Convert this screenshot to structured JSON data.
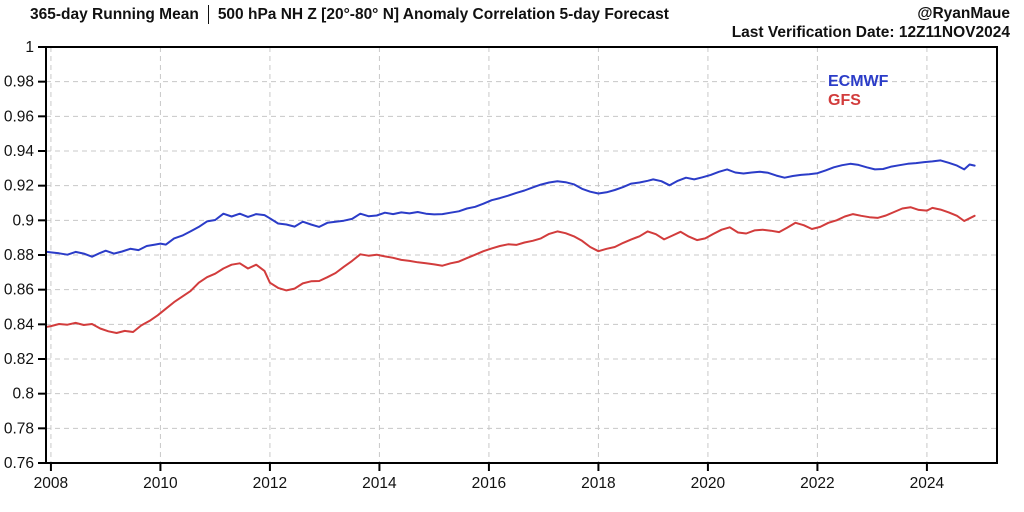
{
  "header": {
    "title_left": "365-day Running Mean",
    "title_right": "500 hPa NH Z [20°-80° N] Anomaly Correlation 5-day Forecast",
    "attribution": "@RyanMaue",
    "verification": "Last Verification Date: 12Z11NOV2024"
  },
  "legend": {
    "items": [
      {
        "label": "ECMWF",
        "color": "#2b3cc8"
      },
      {
        "label": "GFS",
        "color": "#d23c3c"
      }
    ]
  },
  "colors": {
    "axis": "#000000",
    "grid": "#c8c8c8",
    "text": "#111111",
    "background": "#ffffff",
    "ecmwf": "#2b3cc8",
    "gfs": "#d23c3c"
  },
  "chart_data": {
    "type": "line",
    "title": "365-day Running Mean | 500 hPa NH Z [20°-80° N] Anomaly Correlation 5-day Forecast",
    "xlabel": "",
    "ylabel": "",
    "xlim": [
      2007.91,
      2025.28
    ],
    "ylim": [
      0.76,
      1.0
    ],
    "xticks": [
      2008,
      2010,
      2012,
      2014,
      2016,
      2018,
      2020,
      2022,
      2024
    ],
    "xtick_labels": [
      "2008",
      "2010",
      "2012",
      "2014",
      "2016",
      "2018",
      "2020",
      "2022",
      "2024"
    ],
    "yticks": [
      0.76,
      0.78,
      0.8,
      0.82,
      0.84,
      0.86,
      0.88,
      0.9,
      0.92,
      0.94,
      0.96,
      0.98,
      1.0
    ],
    "ytick_labels": [
      "0.76",
      "0.78",
      "0.8",
      "0.82",
      "0.84",
      "0.86",
      "0.88",
      "0.9",
      "0.92",
      "0.94",
      "0.96",
      "0.98",
      "1"
    ],
    "grid": "dashed",
    "legend_position": "upper-right-inside",
    "series": [
      {
        "name": "ECMWF",
        "color": "#2b3cc8",
        "x": [
          2007.93,
          2008.0,
          2008.15,
          2008.3,
          2008.45,
          2008.6,
          2008.75,
          2008.9,
          2009.0,
          2009.15,
          2009.3,
          2009.45,
          2009.6,
          2009.75,
          2009.9,
          2010.0,
          2010.1,
          2010.25,
          2010.4,
          2010.55,
          2010.7,
          2010.85,
          2011.0,
          2011.15,
          2011.3,
          2011.45,
          2011.6,
          2011.75,
          2011.9,
          2012.0,
          2012.15,
          2012.3,
          2012.45,
          2012.6,
          2012.75,
          2012.9,
          2013.05,
          2013.2,
          2013.35,
          2013.5,
          2013.65,
          2013.8,
          2013.95,
          2014.1,
          2014.25,
          2014.4,
          2014.55,
          2014.7,
          2014.85,
          2015.0,
          2015.15,
          2015.3,
          2015.45,
          2015.6,
          2015.75,
          2015.9,
          2016.05,
          2016.2,
          2016.35,
          2016.5,
          2016.65,
          2016.8,
          2016.95,
          2017.1,
          2017.25,
          2017.4,
          2017.55,
          2017.7,
          2017.85,
          2018.0,
          2018.15,
          2018.3,
          2018.45,
          2018.6,
          2018.75,
          2018.9,
          2019.0,
          2019.15,
          2019.3,
          2019.45,
          2019.6,
          2019.75,
          2019.9,
          2020.05,
          2020.2,
          2020.35,
          2020.5,
          2020.65,
          2020.8,
          2020.95,
          2021.1,
          2021.25,
          2021.4,
          2021.55,
          2021.7,
          2021.85,
          2022.0,
          2022.15,
          2022.3,
          2022.45,
          2022.6,
          2022.75,
          2022.9,
          2023.05,
          2023.2,
          2023.35,
          2023.5,
          2023.65,
          2023.8,
          2023.95,
          2024.1,
          2024.25,
          2024.4,
          2024.55,
          2024.68,
          2024.78,
          2024.87
        ],
        "y": [
          0.8818,
          0.8815,
          0.881,
          0.8802,
          0.8818,
          0.8808,
          0.879,
          0.8812,
          0.8825,
          0.8808,
          0.882,
          0.8836,
          0.8828,
          0.8852,
          0.886,
          0.8866,
          0.886,
          0.8896,
          0.8912,
          0.8936,
          0.8962,
          0.8994,
          0.9002,
          0.9038,
          0.9022,
          0.9038,
          0.902,
          0.9036,
          0.903,
          0.9012,
          0.8982,
          0.8976,
          0.8964,
          0.8992,
          0.8976,
          0.8962,
          0.8986,
          0.8992,
          0.8998,
          0.9008,
          0.9038,
          0.9024,
          0.9028,
          0.9044,
          0.9036,
          0.9046,
          0.904,
          0.9048,
          0.9038,
          0.9034,
          0.9036,
          0.9044,
          0.9052,
          0.9068,
          0.9078,
          0.9096,
          0.9116,
          0.9128,
          0.9142,
          0.9158,
          0.9172,
          0.919,
          0.9206,
          0.9218,
          0.9226,
          0.922,
          0.9208,
          0.9182,
          0.9165,
          0.9155,
          0.9162,
          0.9175,
          0.9192,
          0.9212,
          0.9218,
          0.9228,
          0.9236,
          0.9226,
          0.9202,
          0.9228,
          0.9246,
          0.9236,
          0.9248,
          0.9262,
          0.928,
          0.9294,
          0.9276,
          0.927,
          0.9276,
          0.928,
          0.9274,
          0.9258,
          0.9246,
          0.9256,
          0.9262,
          0.9266,
          0.9272,
          0.9288,
          0.9306,
          0.9318,
          0.9326,
          0.932,
          0.9306,
          0.9294,
          0.9296,
          0.931,
          0.9318,
          0.9326,
          0.933,
          0.9336,
          0.934,
          0.9346,
          0.9332,
          0.9316,
          0.9294,
          0.9322,
          0.9316
        ]
      },
      {
        "name": "GFS",
        "color": "#d23c3c",
        "x": [
          2007.93,
          2008.0,
          2008.15,
          2008.3,
          2008.45,
          2008.6,
          2008.75,
          2008.9,
          2009.05,
          2009.2,
          2009.35,
          2009.5,
          2009.65,
          2009.8,
          2009.95,
          2010.1,
          2010.25,
          2010.4,
          2010.55,
          2010.7,
          2010.85,
          2011.0,
          2011.15,
          2011.3,
          2011.45,
          2011.6,
          2011.75,
          2011.9,
          2012.0,
          2012.15,
          2012.3,
          2012.45,
          2012.6,
          2012.75,
          2012.9,
          2013.05,
          2013.2,
          2013.35,
          2013.5,
          2013.65,
          2013.8,
          2013.95,
          2014.1,
          2014.25,
          2014.4,
          2014.55,
          2014.7,
          2014.85,
          2015.0,
          2015.15,
          2015.3,
          2015.45,
          2015.6,
          2015.75,
          2015.9,
          2016.05,
          2016.2,
          2016.35,
          2016.5,
          2016.65,
          2016.8,
          2016.95,
          2017.1,
          2017.25,
          2017.4,
          2017.55,
          2017.7,
          2017.85,
          2018.0,
          2018.15,
          2018.3,
          2018.45,
          2018.6,
          2018.75,
          2018.9,
          2019.05,
          2019.2,
          2019.35,
          2019.5,
          2019.65,
          2019.8,
          2019.95,
          2020.1,
          2020.25,
          2020.4,
          2020.55,
          2020.7,
          2020.85,
          2021.0,
          2021.15,
          2021.3,
          2021.45,
          2021.6,
          2021.75,
          2021.9,
          2022.05,
          2022.2,
          2022.35,
          2022.5,
          2022.65,
          2022.8,
          2022.95,
          2023.1,
          2023.25,
          2023.4,
          2023.55,
          2023.7,
          2023.85,
          2024.0,
          2024.1,
          2024.25,
          2024.4,
          2024.55,
          2024.68,
          2024.78,
          2024.87
        ],
        "y": [
          0.8386,
          0.839,
          0.8402,
          0.8398,
          0.8408,
          0.8396,
          0.8402,
          0.8376,
          0.836,
          0.835,
          0.8362,
          0.8356,
          0.8394,
          0.842,
          0.8452,
          0.849,
          0.8528,
          0.856,
          0.8592,
          0.864,
          0.8672,
          0.8692,
          0.8722,
          0.8744,
          0.8752,
          0.8722,
          0.8744,
          0.8708,
          0.864,
          0.861,
          0.8596,
          0.8606,
          0.8636,
          0.8648,
          0.865,
          0.8672,
          0.8696,
          0.8732,
          0.8766,
          0.8804,
          0.8796,
          0.8802,
          0.8792,
          0.8784,
          0.8772,
          0.8766,
          0.8758,
          0.8752,
          0.8746,
          0.8738,
          0.8752,
          0.8762,
          0.8782,
          0.8802,
          0.8822,
          0.8838,
          0.8852,
          0.8862,
          0.8858,
          0.8872,
          0.8882,
          0.8896,
          0.8922,
          0.8936,
          0.8926,
          0.8908,
          0.8882,
          0.8846,
          0.8822,
          0.8836,
          0.8846,
          0.887,
          0.889,
          0.8908,
          0.8936,
          0.892,
          0.889,
          0.8912,
          0.8934,
          0.8906,
          0.8886,
          0.8896,
          0.8922,
          0.8946,
          0.896,
          0.893,
          0.8924,
          0.8942,
          0.8946,
          0.894,
          0.8932,
          0.8958,
          0.8986,
          0.8972,
          0.895,
          0.8962,
          0.8986,
          0.9,
          0.9022,
          0.9036,
          0.9026,
          0.9018,
          0.9014,
          0.9028,
          0.9048,
          0.9068,
          0.9076,
          0.906,
          0.9056,
          0.9072,
          0.9062,
          0.9046,
          0.9026,
          0.8996,
          0.9012,
          0.9026
        ]
      }
    ]
  }
}
